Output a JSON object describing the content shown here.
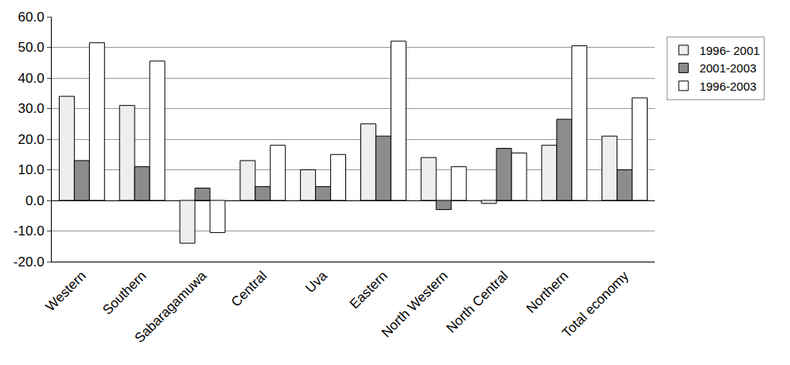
{
  "chart_data": {
    "type": "bar",
    "categories": [
      "Western",
      "Southern",
      "Sabaragamuwa",
      "Central",
      "Uva",
      "Eastern",
      "North Western",
      "North Central",
      "Northern",
      "Total economy"
    ],
    "series": [
      {
        "name": "1996- 2001",
        "color": "#eeeeee",
        "values": [
          34,
          31,
          -14,
          13,
          10,
          25,
          14,
          -1,
          18,
          21
        ]
      },
      {
        "name": "2001-2003",
        "color": "#8c8c8c",
        "values": [
          13,
          11,
          4,
          4.5,
          4.5,
          21,
          -3,
          17,
          26.5,
          10
        ]
      },
      {
        "name": "1996-2003",
        "color": "#ffffff",
        "values": [
          51.5,
          45.5,
          -10.5,
          18,
          15,
          52,
          11,
          15.5,
          50.5,
          33.5
        ]
      }
    ],
    "ylim": [
      -20,
      60
    ],
    "yticks": [
      {
        "value": -20,
        "label": "-20.0"
      },
      {
        "value": -10,
        "label": "-10.0"
      },
      {
        "value": 0,
        "label": "0.0"
      },
      {
        "value": 10,
        "label": "10.0"
      },
      {
        "value": 20,
        "label": "20.0"
      },
      {
        "value": 30,
        "label": "30.0"
      },
      {
        "value": 40,
        "label": "40.0"
      },
      {
        "value": 50,
        "label": "50.0"
      },
      {
        "value": 60,
        "label": "60.0"
      }
    ],
    "grid": true,
    "legend": "right"
  }
}
